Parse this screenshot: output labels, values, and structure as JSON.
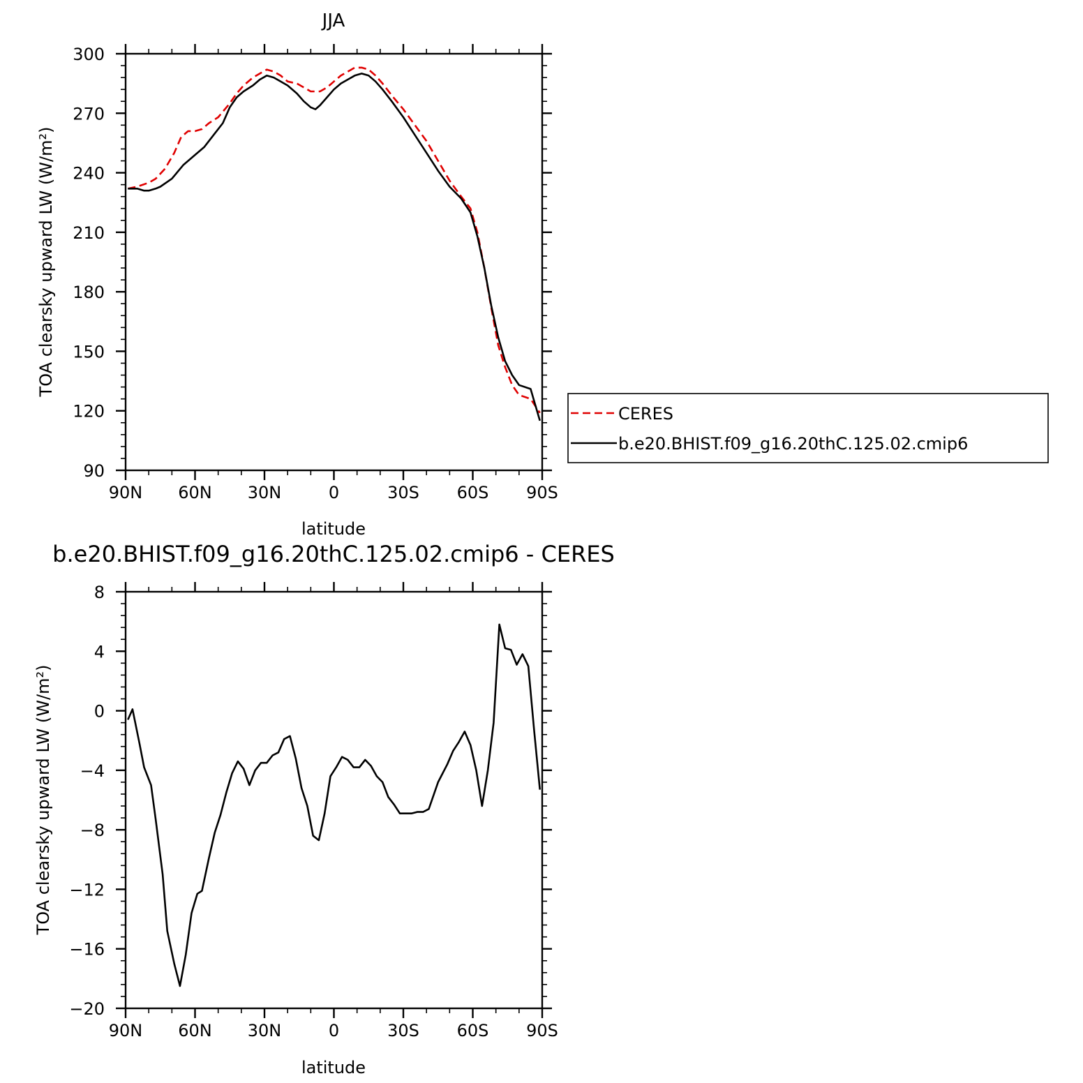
{
  "chart_data": [
    {
      "type": "line",
      "title": "JJA",
      "xlabel": "latitude",
      "ylabel": "TOA clearsky upward LW (W/m²)",
      "xlim": [
        90,
        -90
      ],
      "ylim": [
        90,
        300
      ],
      "x_ticks": [
        90,
        60,
        30,
        0,
        -30,
        -60,
        -90
      ],
      "x_tick_labels": [
        "90N",
        "60N",
        "30N",
        "0",
        "30S",
        "60S",
        "90S"
      ],
      "y_ticks": [
        90,
        120,
        150,
        180,
        210,
        240,
        270,
        300
      ],
      "y_tick_labels": [
        "90",
        "120",
        "150",
        "180",
        "210",
        "240",
        "270",
        "300"
      ],
      "legend_position": "right",
      "series": [
        {
          "name": "CERES",
          "color": "#e00000",
          "style": "dashed",
          "x": [
            89,
            85,
            80,
            77,
            73,
            69,
            66,
            63,
            60,
            57,
            54,
            50,
            45,
            42,
            39,
            35,
            32,
            29,
            26,
            23,
            20,
            16,
            13,
            10,
            6,
            3,
            0,
            -3,
            -6,
            -9,
            -12,
            -15,
            -18,
            -21,
            -25,
            -30,
            -35,
            -40,
            -45,
            -50,
            -55,
            -59,
            -62,
            -65,
            -68,
            -71,
            -74,
            -77,
            -80,
            -85,
            -89
          ],
          "values": [
            232,
            233,
            235,
            237,
            242,
            250,
            258,
            261,
            261,
            262,
            265,
            268,
            275,
            280,
            284,
            288,
            290,
            292,
            291,
            289,
            286,
            285,
            283,
            281,
            281,
            283,
            286,
            289,
            291,
            293,
            293,
            292,
            289,
            285,
            279,
            272,
            264,
            256,
            246,
            236,
            228,
            222,
            210,
            192,
            172,
            153,
            142,
            133,
            128,
            126,
            119
          ]
        },
        {
          "name": "b.e20.BHIST.f09_g16.20thC.125.02.cmip6",
          "color": "#000000",
          "style": "solid",
          "x": [
            89,
            85,
            82,
            80,
            77,
            75,
            70,
            65,
            60,
            56,
            52,
            48,
            45,
            42,
            39,
            35,
            32,
            29,
            26,
            23,
            20,
            16,
            13,
            10,
            8,
            6,
            3,
            0,
            -3,
            -6,
            -9,
            -12,
            -15,
            -18,
            -21,
            -25,
            -30,
            -35,
            -40,
            -45,
            -50,
            -55,
            -59,
            -62,
            -65,
            -68,
            -71,
            -74,
            -77,
            -80,
            -85,
            -89
          ],
          "values": [
            232,
            232,
            231,
            231,
            232,
            233,
            237,
            244,
            249,
            253,
            259,
            265,
            273,
            278,
            281,
            284,
            287,
            289,
            288,
            286,
            284,
            280,
            276,
            273,
            272,
            274,
            278,
            282,
            285,
            287,
            289,
            290,
            289,
            286,
            282,
            276,
            268,
            259,
            250,
            241,
            233,
            227,
            220,
            208,
            192,
            173,
            157,
            145,
            138,
            133,
            131,
            115
          ]
        }
      ]
    },
    {
      "type": "line",
      "title": "b.e20.BHIST.f09_g16.20thC.125.02.cmip6 - CERES",
      "xlabel": "latitude",
      "ylabel": "TOA clearsky upward LW (W/m²)",
      "xlim": [
        90,
        -90
      ],
      "ylim": [
        -20,
        8
      ],
      "x_ticks": [
        90,
        60,
        30,
        0,
        -30,
        -60,
        -90
      ],
      "x_tick_labels": [
        "90N",
        "60N",
        "30N",
        "0",
        "30S",
        "60S",
        "90S"
      ],
      "y_ticks": [
        -20,
        -16,
        -12,
        -8,
        -4,
        0,
        4,
        8
      ],
      "y_tick_labels": [
        "−20",
        "−16",
        "−12",
        "−8",
        "−4",
        "0",
        "4",
        "8"
      ],
      "series": [
        {
          "color": "#000000",
          "style": "solid",
          "x": [
            89,
            87,
            84,
            82,
            79,
            77,
            74,
            72,
            69,
            66.5,
            64,
            61.5,
            59,
            57,
            54,
            51.5,
            49,
            46.5,
            44,
            41.5,
            39,
            36.5,
            34,
            31.5,
            29,
            26.5,
            24,
            21.5,
            19,
            16.5,
            14,
            11.5,
            9,
            6.5,
            4,
            1.5,
            -1,
            -3.5,
            -6,
            -8.5,
            -11,
            -13.5,
            -16,
            -18.5,
            -21,
            -23.5,
            -26,
            -28.5,
            -31,
            -33.5,
            -36,
            -38.5,
            -41,
            -45,
            -49,
            -51.5,
            -54,
            -56.5,
            -59,
            -61.5,
            -64,
            -66.5,
            -69,
            -71.5,
            -74,
            -76.5,
            -79,
            -81.5,
            -84,
            -86.5,
            -89
          ],
          "values": [
            -0.6,
            0.1,
            -2.2,
            -3.8,
            -5.0,
            -7.3,
            -11.0,
            -14.8,
            -17.0,
            -18.5,
            -16.4,
            -13.6,
            -12.3,
            -12.1,
            -9.9,
            -8.2,
            -7.0,
            -5.5,
            -4.2,
            -3.4,
            -3.9,
            -5.0,
            -4.0,
            -3.5,
            -3.5,
            -3.0,
            -2.8,
            -1.9,
            -1.7,
            -3.2,
            -5.2,
            -6.4,
            -8.4,
            -8.7,
            -6.9,
            -4.4,
            -3.8,
            -3.1,
            -3.3,
            -3.8,
            -3.8,
            -3.3,
            -3.7,
            -4.4,
            -4.8,
            -5.8,
            -6.3,
            -6.9,
            -6.9,
            -6.9,
            -6.8,
            -6.8,
            -6.6,
            -4.8,
            -3.6,
            -2.7,
            -2.1,
            -1.4,
            -2.3,
            -4.0,
            -6.4,
            -4.0,
            -0.8,
            5.8,
            4.2,
            4.1,
            3.1,
            3.8,
            3.0,
            -1.3,
            -5.3
          ]
        }
      ]
    }
  ]
}
